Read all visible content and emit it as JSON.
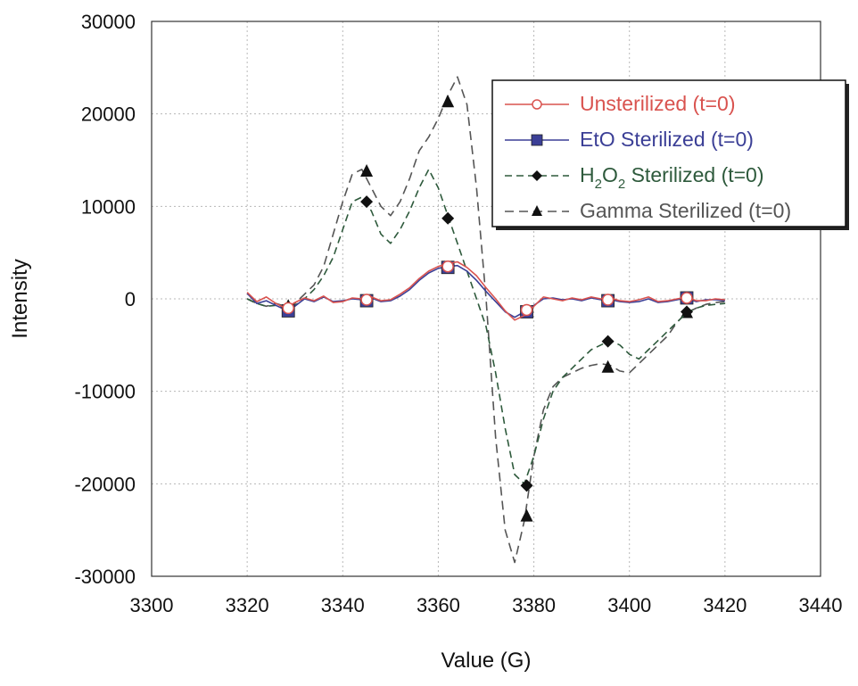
{
  "chart_data": {
    "type": "line",
    "title": "",
    "xlabel": "Value (G)",
    "ylabel": "Intensity",
    "xlim": [
      3300,
      3440
    ],
    "ylim": [
      -30000,
      30000
    ],
    "xticks": [
      3300,
      3320,
      3340,
      3360,
      3380,
      3400,
      3420,
      3440
    ],
    "yticks": [
      -30000,
      -20000,
      -10000,
      0,
      10000,
      20000,
      30000
    ],
    "xtick_labels": [
      "3300",
      "3320",
      "3340",
      "3360",
      "3380",
      "3400",
      "3420",
      "3440"
    ],
    "ytick_labels": [
      "-30000",
      "-20000",
      "-10000",
      "0",
      "10000",
      "20000",
      "30000"
    ],
    "grid": true,
    "legend_position": "top-right",
    "series": [
      {
        "name": "Unsterilized (t=0)",
        "legend_parts": [
          {
            "t": "Unsterilized (t=0)"
          }
        ],
        "color": "#d9534f",
        "marker": "circle-open",
        "dash": "none",
        "x": [
          3320,
          3322,
          3324,
          3326,
          3328,
          3330,
          3332,
          3334,
          3336,
          3338,
          3340,
          3342,
          3344,
          3346,
          3348,
          3350,
          3352,
          3354,
          3356,
          3358,
          3360,
          3362,
          3364,
          3366,
          3368,
          3370,
          3372,
          3374,
          3376,
          3378,
          3380,
          3382,
          3384,
          3386,
          3388,
          3390,
          3392,
          3394,
          3396,
          3398,
          3400,
          3402,
          3404,
          3406,
          3408,
          3410,
          3412,
          3414,
          3416,
          3418,
          3420
        ],
        "y": [
          700,
          -300,
          200,
          -500,
          -1000,
          -400,
          100,
          -200,
          300,
          -400,
          -300,
          100,
          0,
          200,
          -200,
          -100,
          500,
          1200,
          2200,
          3000,
          3500,
          3800,
          4000,
          3400,
          2500,
          1200,
          0,
          -1300,
          -2300,
          -1800,
          -800,
          200,
          0,
          -200,
          100,
          -100,
          200,
          0,
          100,
          -200,
          -300,
          -100,
          200,
          -300,
          -200,
          0,
          200,
          -200,
          -200,
          0,
          -100
        ],
        "marker_x": [
          3328.6,
          3345,
          3362,
          3378.5,
          3395.5,
          3412
        ],
        "marker_y": [
          -1000,
          -100,
          3500,
          -1200,
          -100,
          100
        ]
      },
      {
        "name": "EtO Sterilized (t=0)",
        "legend_parts": [
          {
            "t": "EtO Sterilized (t=0)"
          }
        ],
        "color": "#3b3f96",
        "marker": "square",
        "dash": "none",
        "x": [
          3320,
          3322,
          3324,
          3326,
          3328,
          3330,
          3332,
          3334,
          3336,
          3338,
          3340,
          3342,
          3344,
          3346,
          3348,
          3350,
          3352,
          3354,
          3356,
          3358,
          3360,
          3362,
          3364,
          3366,
          3368,
          3370,
          3372,
          3374,
          3376,
          3378,
          3380,
          3382,
          3384,
          3386,
          3388,
          3390,
          3392,
          3394,
          3396,
          3398,
          3400,
          3402,
          3404,
          3406,
          3408,
          3410,
          3412,
          3414,
          3416,
          3418,
          3420
        ],
        "y": [
          600,
          -500,
          -200,
          -700,
          -1200,
          -800,
          0,
          -300,
          200,
          -300,
          -200,
          0,
          -100,
          100,
          -300,
          -200,
          300,
          1000,
          2000,
          2800,
          3300,
          3500,
          3600,
          3000,
          2000,
          800,
          -300,
          -1400,
          -2000,
          -1400,
          -700,
          0,
          100,
          -100,
          0,
          -200,
          100,
          -100,
          -100,
          -300,
          -400,
          -300,
          0,
          -400,
          -300,
          -100,
          100,
          -300,
          -100,
          -100,
          -200
        ],
        "marker_x": [
          3328.6,
          3345,
          3362,
          3378.5,
          3395.5,
          3412
        ],
        "marker_y": [
          -1300,
          -200,
          3400,
          -1400,
          -200,
          100
        ]
      },
      {
        "name": "H2O2 Sterilized (t=0)",
        "legend_parts": [
          {
            "t": "H"
          },
          {
            "t": "2",
            "sub": true
          },
          {
            "t": "O"
          },
          {
            "t": "2",
            "sub": true
          },
          {
            "t": " Sterilized (t=0)"
          }
        ],
        "color": "#2e5a3c",
        "marker": "diamond",
        "dash": "8,5",
        "x": [
          3320,
          3322,
          3324,
          3326,
          3328,
          3330,
          3332,
          3334,
          3336,
          3338,
          3340,
          3342,
          3344,
          3346,
          3348,
          3350,
          3352,
          3354,
          3356,
          3358,
          3360,
          3362,
          3364,
          3366,
          3368,
          3370,
          3372,
          3374,
          3376,
          3378,
          3380,
          3382,
          3384,
          3386,
          3388,
          3390,
          3392,
          3394,
          3396,
          3398,
          3400,
          3402,
          3404,
          3406,
          3408,
          3410,
          3412,
          3414,
          3416,
          3418,
          3420
        ],
        "y": [
          0,
          -500,
          -800,
          -700,
          -1000,
          -700,
          0,
          1000,
          2500,
          4500,
          7500,
          10500,
          11000,
          9500,
          7000,
          6000,
          7500,
          9500,
          12000,
          14000,
          12000,
          9000,
          6000,
          3000,
          0,
          -3000,
          -8000,
          -14000,
          -19000,
          -20000,
          -17000,
          -13000,
          -10000,
          -8500,
          -7500,
          -6500,
          -5500,
          -5000,
          -4500,
          -5000,
          -6000,
          -6500,
          -5500,
          -4500,
          -3500,
          -2500,
          -1500,
          -1000,
          -700,
          -600,
          -500
        ],
        "marker_x": [
          3328.6,
          3345,
          3362,
          3378.5,
          3395.5,
          3412
        ],
        "marker_y": [
          -1000,
          10500,
          8700,
          -20200,
          -4600,
          -1400
        ]
      },
      {
        "name": "Gamma Sterilized (t=0)",
        "legend_parts": [
          {
            "t": "Gamma Sterilized (t=0)"
          }
        ],
        "color": "#555555",
        "marker": "triangle",
        "dash": "10,6",
        "x": [
          3320,
          3322,
          3324,
          3326,
          3328,
          3330,
          3332,
          3334,
          3336,
          3338,
          3340,
          3342,
          3344,
          3346,
          3348,
          3350,
          3352,
          3354,
          3356,
          3358,
          3360,
          3362,
          3364,
          3366,
          3368,
          3370,
          3372,
          3374,
          3376,
          3378,
          3380,
          3382,
          3384,
          3386,
          3388,
          3390,
          3392,
          3394,
          3396,
          3398,
          3400,
          3402,
          3404,
          3406,
          3408,
          3410,
          3412,
          3414,
          3416,
          3418,
          3420
        ],
        "y": [
          0,
          -500,
          -800,
          -500,
          -800,
          -500,
          500,
          1500,
          3500,
          7000,
          10500,
          13500,
          14000,
          12000,
          10000,
          9000,
          10500,
          13000,
          16000,
          17500,
          19500,
          22000,
          24000,
          21000,
          12000,
          0,
          -15000,
          -25000,
          -28500,
          -24000,
          -17000,
          -12000,
          -9500,
          -8500,
          -8000,
          -7500,
          -7200,
          -7000,
          -7200,
          -7800,
          -8000,
          -7000,
          -6000,
          -5000,
          -4000,
          -2500,
          -1500,
          -1000,
          -600,
          -400,
          -300
        ],
        "marker_x": [
          3328.6,
          3345,
          3362,
          3378.5,
          3395.5,
          3412
        ],
        "marker_y": [
          -800,
          13800,
          21300,
          -23500,
          -7400,
          -1500
        ]
      }
    ]
  }
}
